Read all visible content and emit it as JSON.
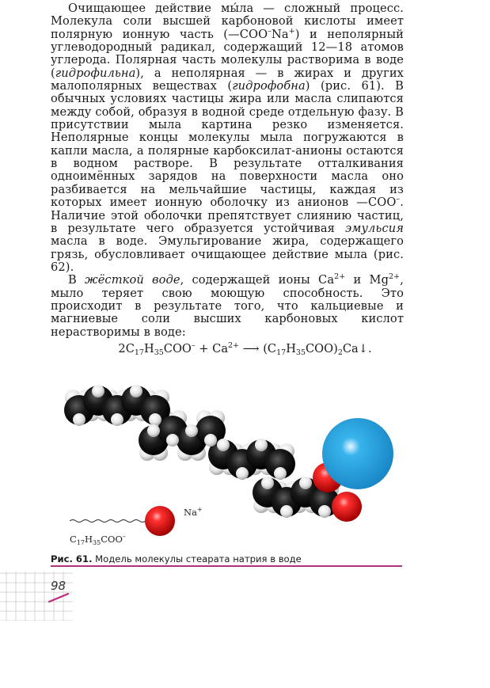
{
  "paragraphs": {
    "p1": {
      "s1": "Очищающее действие мы́ла — сложный процесс. Молекула соли высшей карбоновой кислоты имеет полярную ионную часть (—COO",
      "sup1": "–",
      "s2": "Na",
      "sup2": "+",
      "s3": ") и неполярный углеводородный радикал, содержащий 12—18 атомов углерода. Полярная часть молекулы растворима в воде (",
      "em1": "гидрофильна",
      "s4": "), а неполярная — в жирах и других малополярных веществах (",
      "em2": "гидрофобна",
      "s5": ") (рис. 61). В обычных условиях частицы жира или масла слипаются между собой, образуя в водной среде отдельную фазу. В присутствии мыла картина резко изменяется. Неполярные концы молекулы мыла погружаются в капли масла, а полярные карбоксилат-анионы остаются в водном растворе. В результате отталкивания одноимённых зарядов на поверхности масла оно разбивается на мельчайшие частицы, каждая из которых имеет ионную оболочку из анионов —COO",
      "sup3": "–",
      "s6": ". Наличие этой оболочки препятствует слиянию частиц, в результате чего образуется устойчивая ",
      "em3": "эмульсия",
      "s7": " масла в воде. Эмульгирование жира, содержащего грязь, обусловливает очищающее действие мыла (рис. 62)."
    },
    "p2": {
      "s1": "В ",
      "em1": "жёсткой воде",
      "s2": ", содержащей ионы Ca",
      "sup1": "2+",
      "s3": " и Mg",
      "sup2": "2+",
      "s4": ", мыло теряет свою моющую способность. Это происходит в результате того, что кальциевые и магниевые соли высших карбоновых кислот нерастворимы в воде:"
    }
  },
  "equation": {
    "t1": "2C",
    "sub1": "17",
    "t2": "H",
    "sub2": "35",
    "t3": "COO",
    "sup1": "–",
    "t4": " + Ca",
    "sup2": "2+",
    "t5": " ⟶ (C",
    "sub3": "17",
    "t6": "H",
    "sub4": "35",
    "t7": "COO)",
    "sub5": "2",
    "t8": "Ca↓."
  },
  "figure": {
    "ion_label": "Na",
    "ion_charge": "+",
    "tail_formula": {
      "t1": "C",
      "sub1": "17",
      "t2": "H",
      "sub2": "35",
      "t3": "COO",
      "sup1": "–"
    },
    "colors": {
      "carbon": "#0d0d0d",
      "hydrogen": "#f2f2f2",
      "oxygen": "#e01b1b",
      "sodium": "#2aa3df"
    }
  },
  "caption": {
    "label": "Рис. 61.",
    "text": " Модель молекулы стеарата натрия в воде",
    "rule_color": "#b0307d"
  },
  "page_number": "98"
}
